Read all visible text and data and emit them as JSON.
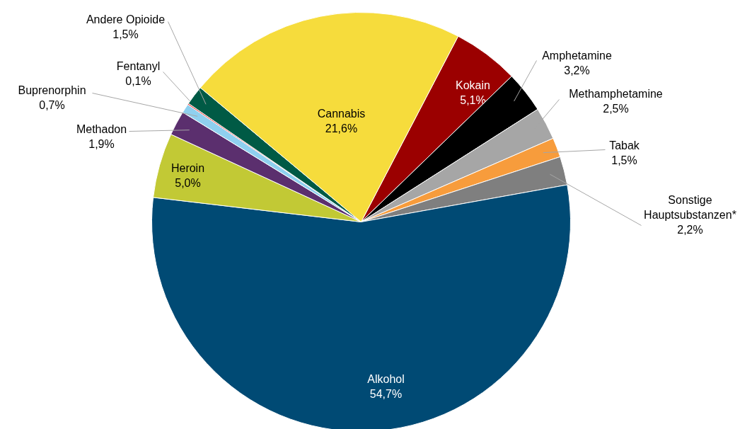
{
  "chart_data": {
    "type": "pie",
    "categories": [
      "Kokain",
      "Amphetamine",
      "Methamphetamine",
      "Tabak",
      "Sonstige Hauptsubstanzen*",
      "Alkohol",
      "Heroin",
      "Methadon",
      "Buprenorphin",
      "Fentanyl",
      "Andere Opioide",
      "Cannabis"
    ],
    "values": [
      5.1,
      3.2,
      2.5,
      1.5,
      2.2,
      54.7,
      5.0,
      1.9,
      0.7,
      0.1,
      1.5,
      21.6
    ],
    "value_labels": [
      "5,1%",
      "3,2%",
      "2,5%",
      "1,5%",
      "2,2%",
      "54,7%",
      "5,0%",
      "1,9%",
      "0,7%",
      "0,1%",
      "1,5%",
      "21,6%"
    ],
    "colors": [
      "#9b0000",
      "#000000",
      "#a6a6a6",
      "#f79c3c",
      "#7f7f7f",
      "#004a74",
      "#c2c935",
      "#5b2f6e",
      "#8fd0ef",
      "#e52420",
      "#005a45",
      "#f6dc3c"
    ]
  }
}
